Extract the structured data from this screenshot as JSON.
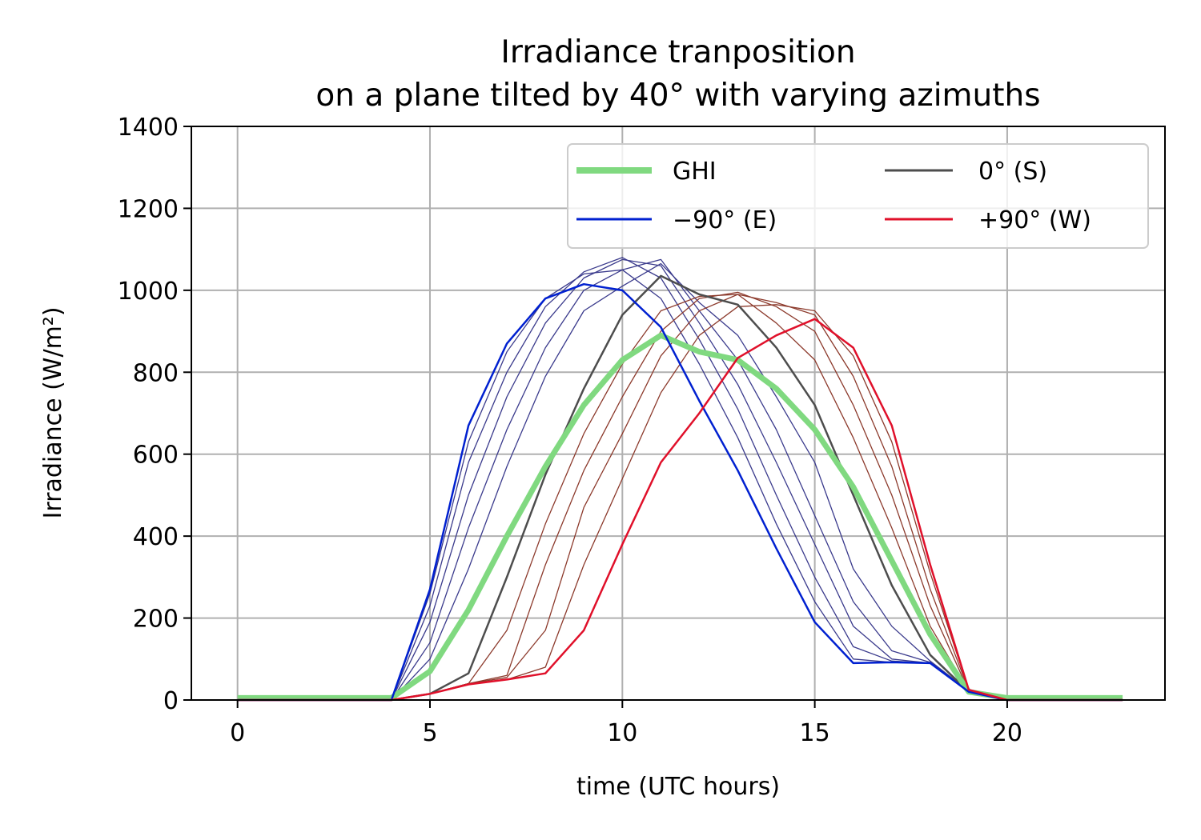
{
  "chart_data": {
    "type": "line",
    "title": "Irradiance tranposition\non a plane tilted by 40° with varying azimuths",
    "title_lines": [
      "Irradiance tranposition",
      "on a plane tilted by 40° with varying azimuths"
    ],
    "xlabel": "time (UTC hours)",
    "ylabel": "Irradiance (W/m²)",
    "xlim": [
      -1.2,
      24.1
    ],
    "ylim": [
      0,
      1400
    ],
    "xticks": [
      0,
      5,
      10,
      15,
      20
    ],
    "yticks": [
      0,
      200,
      400,
      600,
      800,
      1000,
      1200,
      1400
    ],
    "grid": true,
    "legend_position": "top-right",
    "legend": [
      {
        "label": "GHI",
        "color": "#80d980"
      },
      {
        "label": "0° (S)",
        "color": "#4d4d4d"
      },
      {
        "label": "−90° (E)",
        "color": "#0020d0"
      },
      {
        "label": "+90° (W)",
        "color": "#e0102a"
      }
    ],
    "x": [
      0,
      1,
      2,
      3,
      4,
      5,
      6,
      7,
      8,
      9,
      10,
      11,
      12,
      13,
      14,
      15,
      16,
      17,
      18,
      19,
      20,
      21,
      22,
      23
    ],
    "series": [
      {
        "name": "GHI",
        "color": "#80d980",
        "values": [
          5,
          5,
          5,
          5,
          5,
          70,
          220,
          400,
          570,
          720,
          830,
          890,
          850,
          830,
          760,
          660,
          520,
          340,
          160,
          20,
          5,
          5,
          5,
          5
        ]
      },
      {
        "name": "0° (S)",
        "color": "#4d4d4d",
        "values": [
          0,
          0,
          0,
          0,
          0,
          15,
          65,
          300,
          550,
          760,
          940,
          1035,
          990,
          965,
          860,
          720,
          500,
          280,
          110,
          20,
          0,
          0,
          0,
          0
        ]
      },
      {
        "name": "−90° (E)",
        "color": "#0020d0",
        "values": [
          0,
          0,
          0,
          0,
          0,
          270,
          670,
          870,
          980,
          1015,
          1000,
          910,
          730,
          560,
          370,
          190,
          90,
          92,
          90,
          20,
          0,
          0,
          0,
          0
        ]
      },
      {
        "name": "+90° (W)",
        "color": "#e0102a",
        "values": [
          0,
          0,
          0,
          0,
          0,
          15,
          38,
          50,
          65,
          170,
          380,
          580,
          700,
          835,
          890,
          930,
          860,
          670,
          330,
          25,
          0,
          0,
          0,
          0
        ]
      },
      {
        "color": "#3a3a8c",
        "values": [
          0,
          0,
          0,
          0,
          0,
          260,
          630,
          850,
          980,
          1040,
          1050,
          980,
          820,
          640,
          430,
          240,
          100,
          92,
          90,
          22,
          0,
          0,
          0,
          0
        ]
      },
      {
        "color": "#3a3a8c",
        "values": [
          0,
          0,
          0,
          0,
          0,
          230,
          580,
          800,
          960,
          1045,
          1080,
          1030,
          880,
          710,
          500,
          300,
          130,
          95,
          90,
          22,
          0,
          0,
          0,
          0
        ]
      },
      {
        "color": "#3a3a8c",
        "values": [
          0,
          0,
          0,
          0,
          0,
          190,
          500,
          740,
          920,
          1030,
          1075,
          1060,
          920,
          770,
          580,
          380,
          180,
          100,
          90,
          22,
          0,
          0,
          0,
          0
        ]
      },
      {
        "color": "#3a3a8c",
        "values": [
          0,
          0,
          0,
          0,
          0,
          140,
          420,
          660,
          860,
          1000,
          1050,
          1075,
          950,
          830,
          660,
          450,
          240,
          120,
          92,
          22,
          0,
          0,
          0,
          0
        ]
      },
      {
        "color": "#3a3a8c",
        "values": [
          0,
          0,
          0,
          0,
          0,
          100,
          320,
          570,
          790,
          950,
          1010,
          1065,
          970,
          890,
          740,
          580,
          320,
          180,
          95,
          22,
          0,
          0,
          0,
          0
        ]
      },
      {
        "color": "#8c3a2c",
        "values": [
          0,
          0,
          0,
          0,
          0,
          15,
          40,
          170,
          430,
          650,
          820,
          950,
          985,
          990,
          920,
          830,
          640,
          420,
          180,
          22,
          0,
          0,
          0,
          0
        ]
      },
      {
        "color": "#8c3a2c",
        "values": [
          0,
          0,
          0,
          0,
          0,
          15,
          40,
          60,
          330,
          560,
          740,
          900,
          980,
          995,
          960,
          900,
          720,
          500,
          230,
          22,
          0,
          0,
          0,
          0
        ]
      },
      {
        "color": "#8c3a2c",
        "values": [
          0,
          0,
          0,
          0,
          0,
          15,
          40,
          55,
          170,
          470,
          650,
          840,
          950,
          990,
          970,
          940,
          790,
          570,
          270,
          24,
          0,
          0,
          0,
          0
        ]
      },
      {
        "color": "#8c3a2c",
        "values": [
          0,
          0,
          0,
          0,
          0,
          15,
          40,
          50,
          80,
          330,
          540,
          750,
          890,
          960,
          965,
          950,
          840,
          630,
          310,
          25,
          0,
          0,
          0,
          0
        ]
      }
    ]
  }
}
